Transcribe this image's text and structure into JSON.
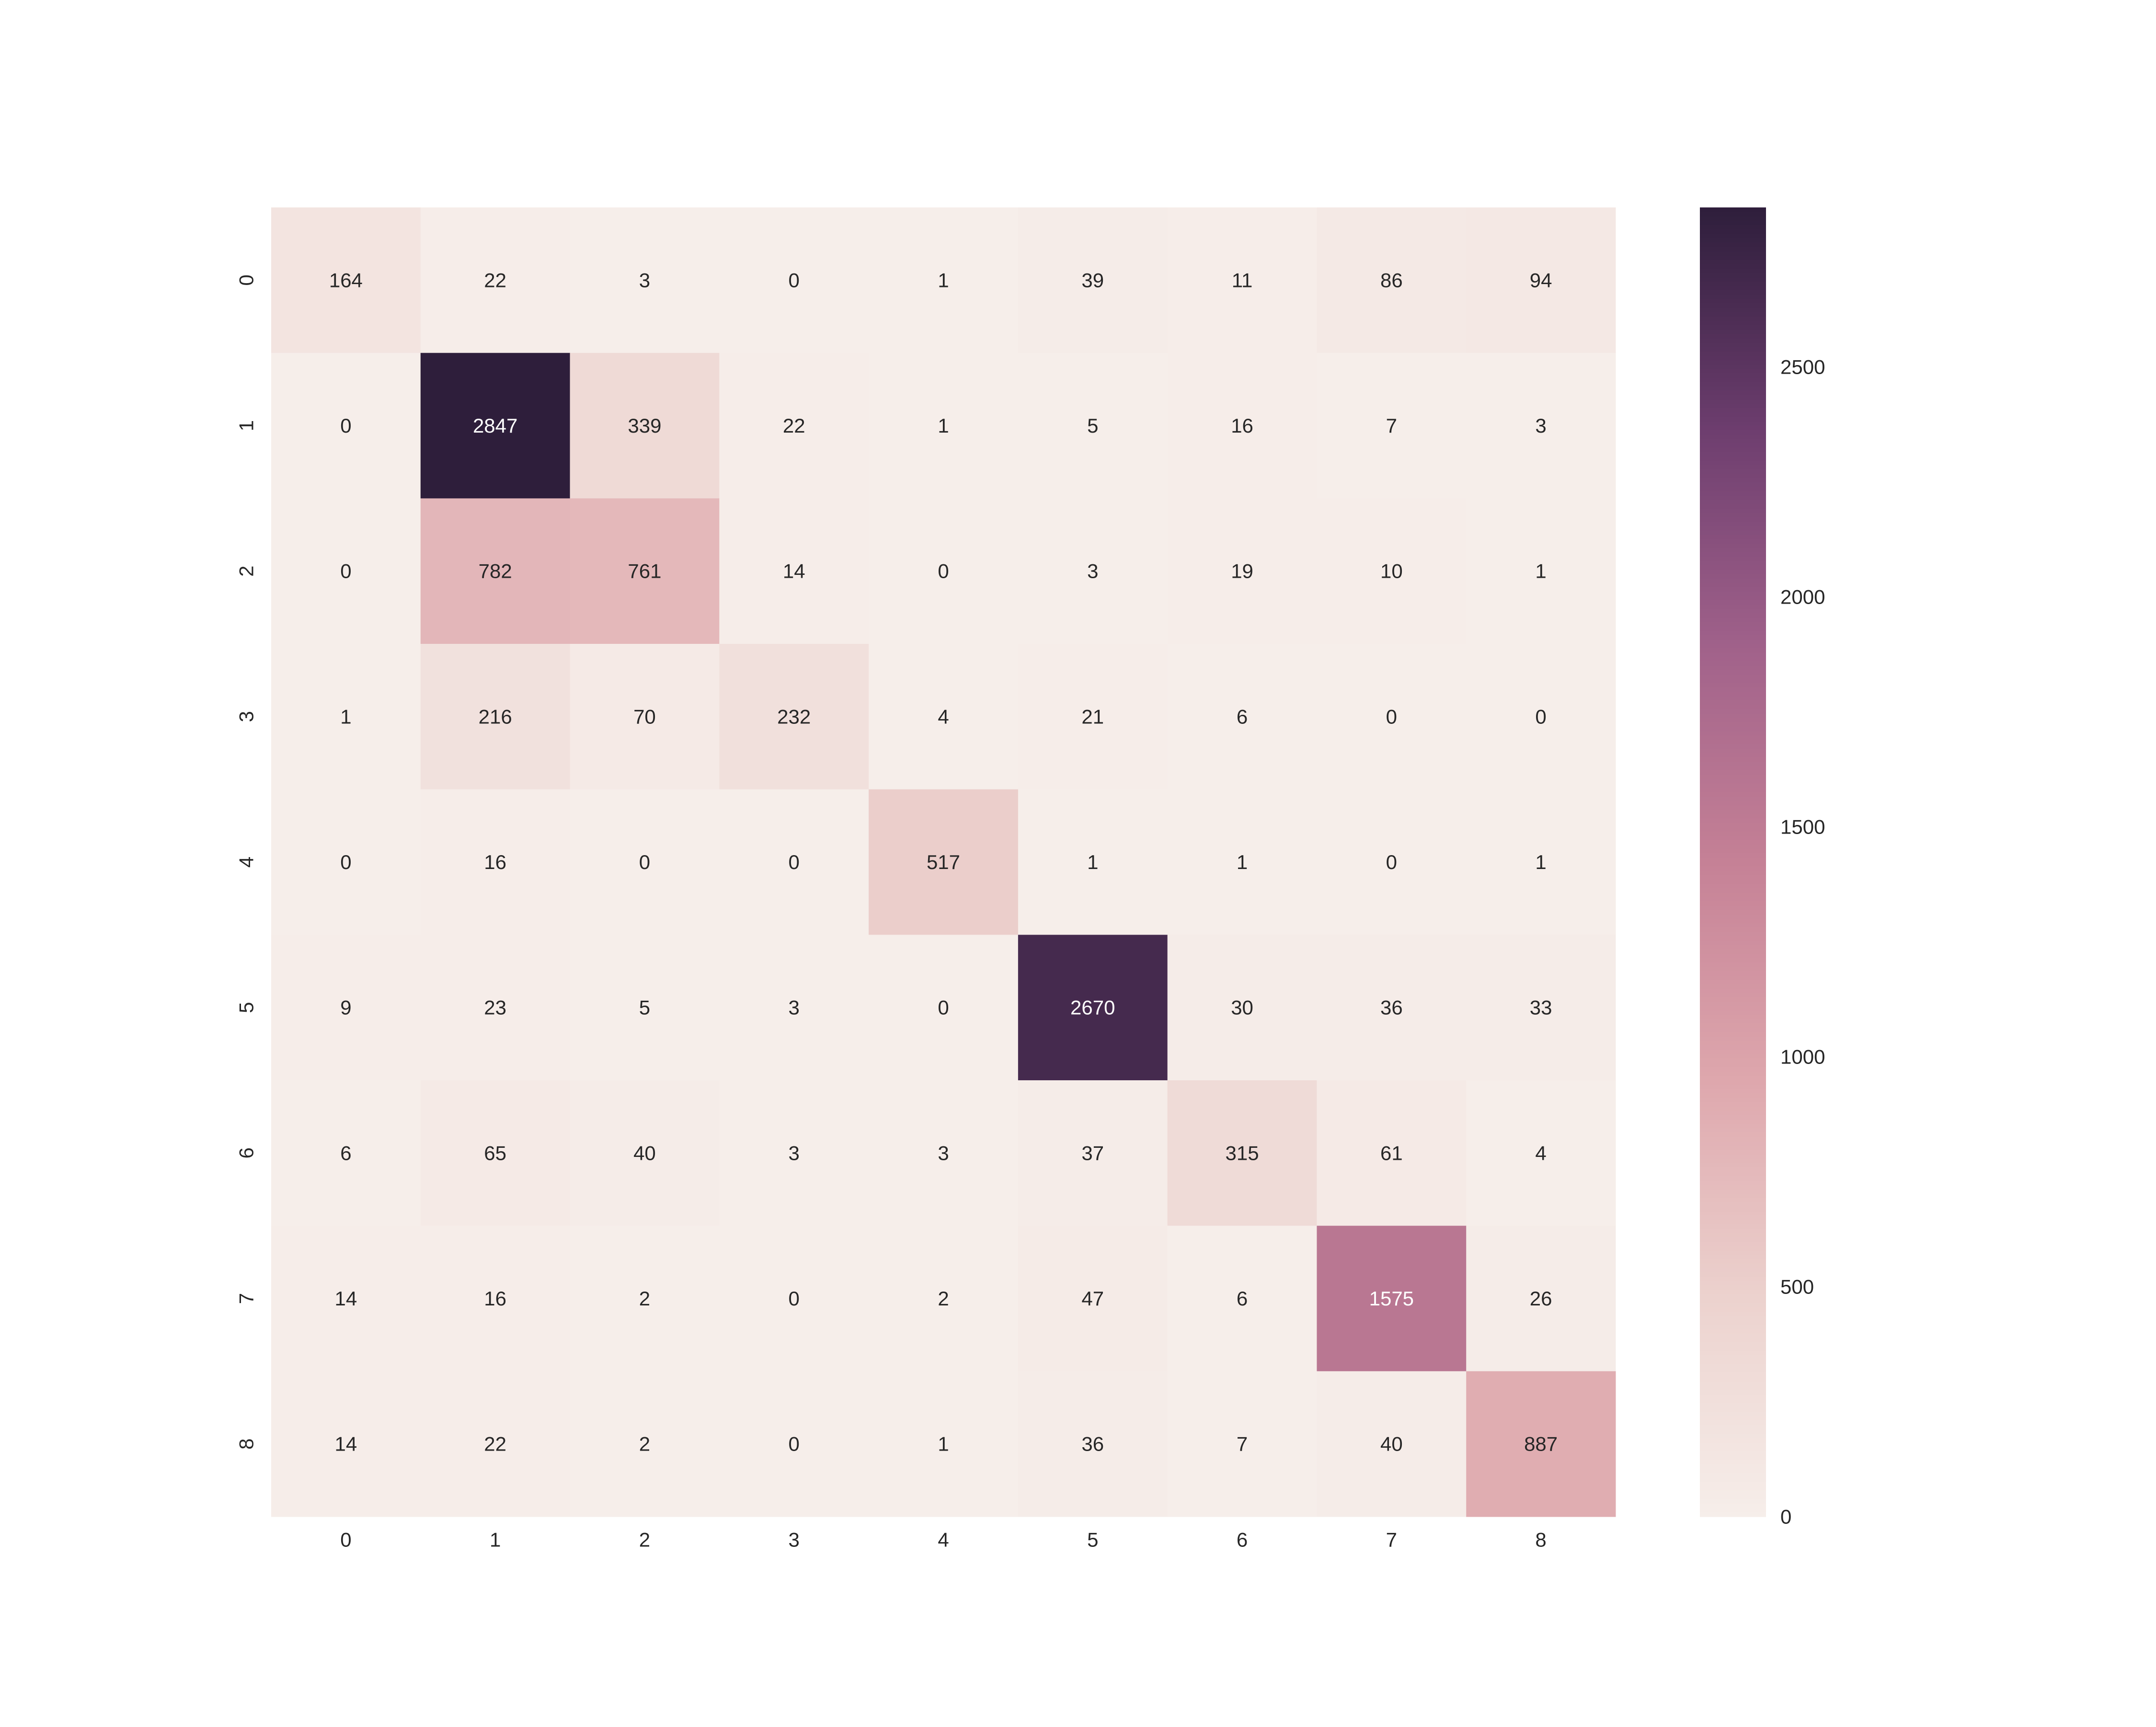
{
  "chart_data": {
    "type": "heatmap",
    "title": "",
    "xlabel": "",
    "ylabel": "",
    "x_categories": [
      "0",
      "1",
      "2",
      "3",
      "4",
      "5",
      "6",
      "7",
      "8"
    ],
    "y_categories": [
      "0",
      "1",
      "2",
      "3",
      "4",
      "5",
      "6",
      "7",
      "8"
    ],
    "values": [
      [
        164,
        22,
        3,
        0,
        1,
        39,
        11,
        86,
        94
      ],
      [
        0,
        2847,
        339,
        22,
        1,
        5,
        16,
        7,
        3
      ],
      [
        0,
        782,
        761,
        14,
        0,
        3,
        19,
        10,
        1
      ],
      [
        1,
        216,
        70,
        232,
        4,
        21,
        6,
        0,
        0
      ],
      [
        0,
        16,
        0,
        0,
        517,
        1,
        1,
        0,
        1
      ],
      [
        9,
        23,
        5,
        3,
        0,
        2670,
        30,
        36,
        33
      ],
      [
        6,
        65,
        40,
        3,
        3,
        37,
        315,
        61,
        4
      ],
      [
        14,
        16,
        2,
        0,
        2,
        47,
        6,
        1575,
        26
      ],
      [
        14,
        22,
        2,
        0,
        1,
        36,
        7,
        40,
        887
      ]
    ],
    "annotated": true,
    "colorbar": {
      "range": [
        0,
        2847
      ],
      "ticks": [
        0,
        500,
        1000,
        1500,
        2000,
        2500
      ],
      "colors": [
        "#f6eeea",
        "#ecd2ce",
        "#dea7ad",
        "#c58196",
        "#a0618a",
        "#6c3d6e",
        "#2e1e3b"
      ]
    },
    "grid": false,
    "legend": "colorbar-right"
  }
}
